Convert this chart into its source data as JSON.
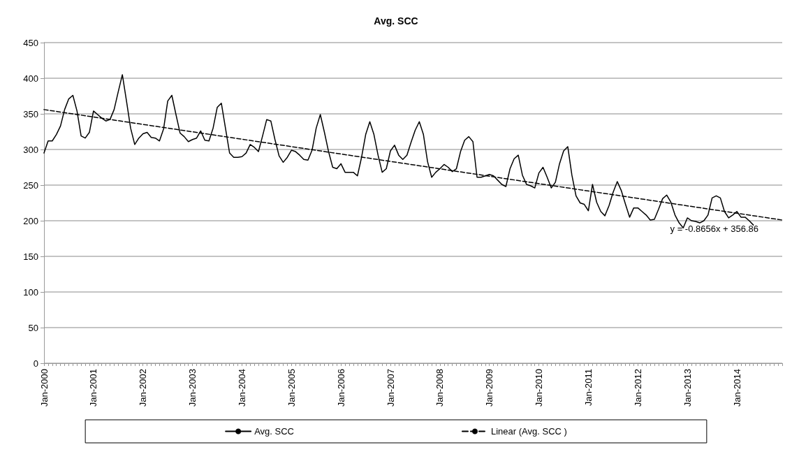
{
  "chart_data": {
    "type": "line",
    "title": "Avg. SCC",
    "categories": [
      "Jan-2000",
      null,
      null,
      null,
      null,
      null,
      null,
      null,
      null,
      null,
      null,
      null,
      "Jan-2001",
      null,
      null,
      null,
      null,
      null,
      null,
      null,
      null,
      null,
      null,
      null,
      "Jan-2002",
      null,
      null,
      null,
      null,
      null,
      null,
      null,
      null,
      null,
      null,
      null,
      "Jan-2003",
      null,
      null,
      null,
      null,
      null,
      null,
      null,
      null,
      null,
      null,
      null,
      "Jan-2004",
      null,
      null,
      null,
      null,
      null,
      null,
      null,
      null,
      null,
      null,
      null,
      "Jan-2005",
      null,
      null,
      null,
      null,
      null,
      null,
      null,
      null,
      null,
      null,
      null,
      "Jan-2006",
      null,
      null,
      null,
      null,
      null,
      null,
      null,
      null,
      null,
      null,
      null,
      "Jan-2007",
      null,
      null,
      null,
      null,
      null,
      null,
      null,
      null,
      null,
      null,
      null,
      "Jan-2008",
      null,
      null,
      null,
      null,
      null,
      null,
      null,
      null,
      null,
      null,
      null,
      "Jan-2009",
      null,
      null,
      null,
      null,
      null,
      null,
      null,
      null,
      null,
      null,
      null,
      "Jan-2010",
      null,
      null,
      null,
      null,
      null,
      null,
      null,
      null,
      null,
      null,
      null,
      "Jan-2011",
      null,
      null,
      null,
      null,
      null,
      null,
      null,
      null,
      null,
      null,
      null,
      "Jan-2012",
      null,
      null,
      null,
      null,
      null,
      null,
      null,
      null,
      null,
      null,
      null,
      "Jan-2013",
      null,
      null,
      null,
      null,
      null,
      null,
      null,
      null,
      null,
      null,
      null,
      "Jan-2014",
      null,
      null,
      null,
      null,
      null,
      null,
      null,
      null,
      null,
      null,
      null
    ],
    "series": [
      {
        "name": "Avg. SCC",
        "color": "#000000",
        "line_style": "solid",
        "values": [
          295,
          312,
          312,
          321,
          333,
          356,
          371,
          376,
          354,
          319,
          316,
          324,
          354,
          349,
          344,
          340,
          342,
          356,
          381,
          405,
          368,
          330,
          307,
          316,
          322,
          324,
          317,
          316,
          312,
          329,
          368,
          376,
          349,
          323,
          318,
          311,
          314,
          316,
          326,
          313,
          312,
          330,
          359,
          365,
          330,
          295,
          289,
          289,
          290,
          295,
          307,
          303,
          297,
          319,
          342,
          340,
          314,
          291,
          282,
          289,
          299,
          297,
          292,
          286,
          285,
          299,
          330,
          349,
          324,
          297,
          275,
          273,
          280,
          268,
          268,
          268,
          263,
          289,
          321,
          339,
          321,
          292,
          268,
          273,
          298,
          306,
          292,
          286,
          292,
          310,
          327,
          339,
          321,
          283,
          261,
          268,
          273,
          279,
          275,
          269,
          273,
          297,
          313,
          318,
          311,
          261,
          261,
          263,
          265,
          263,
          257,
          251,
          248,
          273,
          287,
          292,
          264,
          251,
          249,
          246,
          267,
          275,
          261,
          246,
          254,
          280,
          298,
          304,
          264,
          235,
          225,
          223,
          214,
          251,
          226,
          213,
          207,
          221,
          240,
          255,
          242,
          223,
          205,
          218,
          218,
          213,
          208,
          201,
          202,
          216,
          231,
          236,
          226,
          208,
          197,
          190,
          204,
          200,
          199,
          197,
          200,
          208,
          232,
          235,
          232,
          213,
          204,
          208,
          213,
          205,
          205,
          200,
          194,
          null,
          null,
          null,
          null,
          null,
          null,
          null
        ]
      },
      {
        "name": "Linear (Avg. SCC )",
        "color": "#000000",
        "line_style": "dashed",
        "values": [
          356.0,
          null,
          null,
          null,
          null,
          null,
          null,
          null,
          null,
          null,
          null,
          null,
          null,
          null,
          null,
          null,
          null,
          null,
          null,
          null,
          null,
          null,
          null,
          null,
          null,
          null,
          null,
          null,
          null,
          null,
          null,
          null,
          null,
          null,
          null,
          null,
          null,
          null,
          null,
          null,
          null,
          null,
          null,
          null,
          null,
          null,
          null,
          null,
          null,
          null,
          null,
          null,
          null,
          null,
          null,
          null,
          null,
          null,
          null,
          null,
          null,
          null,
          null,
          null,
          null,
          null,
          null,
          null,
          null,
          null,
          null,
          null,
          null,
          null,
          null,
          null,
          null,
          null,
          null,
          null,
          null,
          null,
          null,
          null,
          null,
          null,
          null,
          null,
          null,
          null,
          null,
          null,
          null,
          null,
          null,
          null,
          null,
          null,
          null,
          null,
          null,
          null,
          null,
          null,
          null,
          null,
          null,
          null,
          null,
          null,
          null,
          null,
          null,
          null,
          null,
          null,
          null,
          null,
          null,
          null,
          null,
          null,
          null,
          null,
          null,
          null,
          null,
          null,
          null,
          null,
          null,
          null,
          null,
          null,
          null,
          null,
          null,
          null,
          null,
          null,
          null,
          null,
          null,
          null,
          null,
          null,
          null,
          null,
          null,
          null,
          null,
          null,
          null,
          null,
          null,
          null,
          null,
          null,
          null,
          null,
          null,
          null,
          null,
          null,
          null,
          null,
          null,
          null,
          null,
          null,
          null,
          null,
          null,
          null,
          null,
          null,
          null,
          null,
          null,
          201.0
        ]
      }
    ],
    "annotations": [
      "y = -0.8656x + 356.86"
    ],
    "ylim": [
      0,
      450
    ],
    "yticks": [
      0,
      50,
      100,
      150,
      200,
      250,
      300,
      350,
      400,
      450
    ],
    "grid": "y",
    "legend": "bottom",
    "marker": "none"
  }
}
